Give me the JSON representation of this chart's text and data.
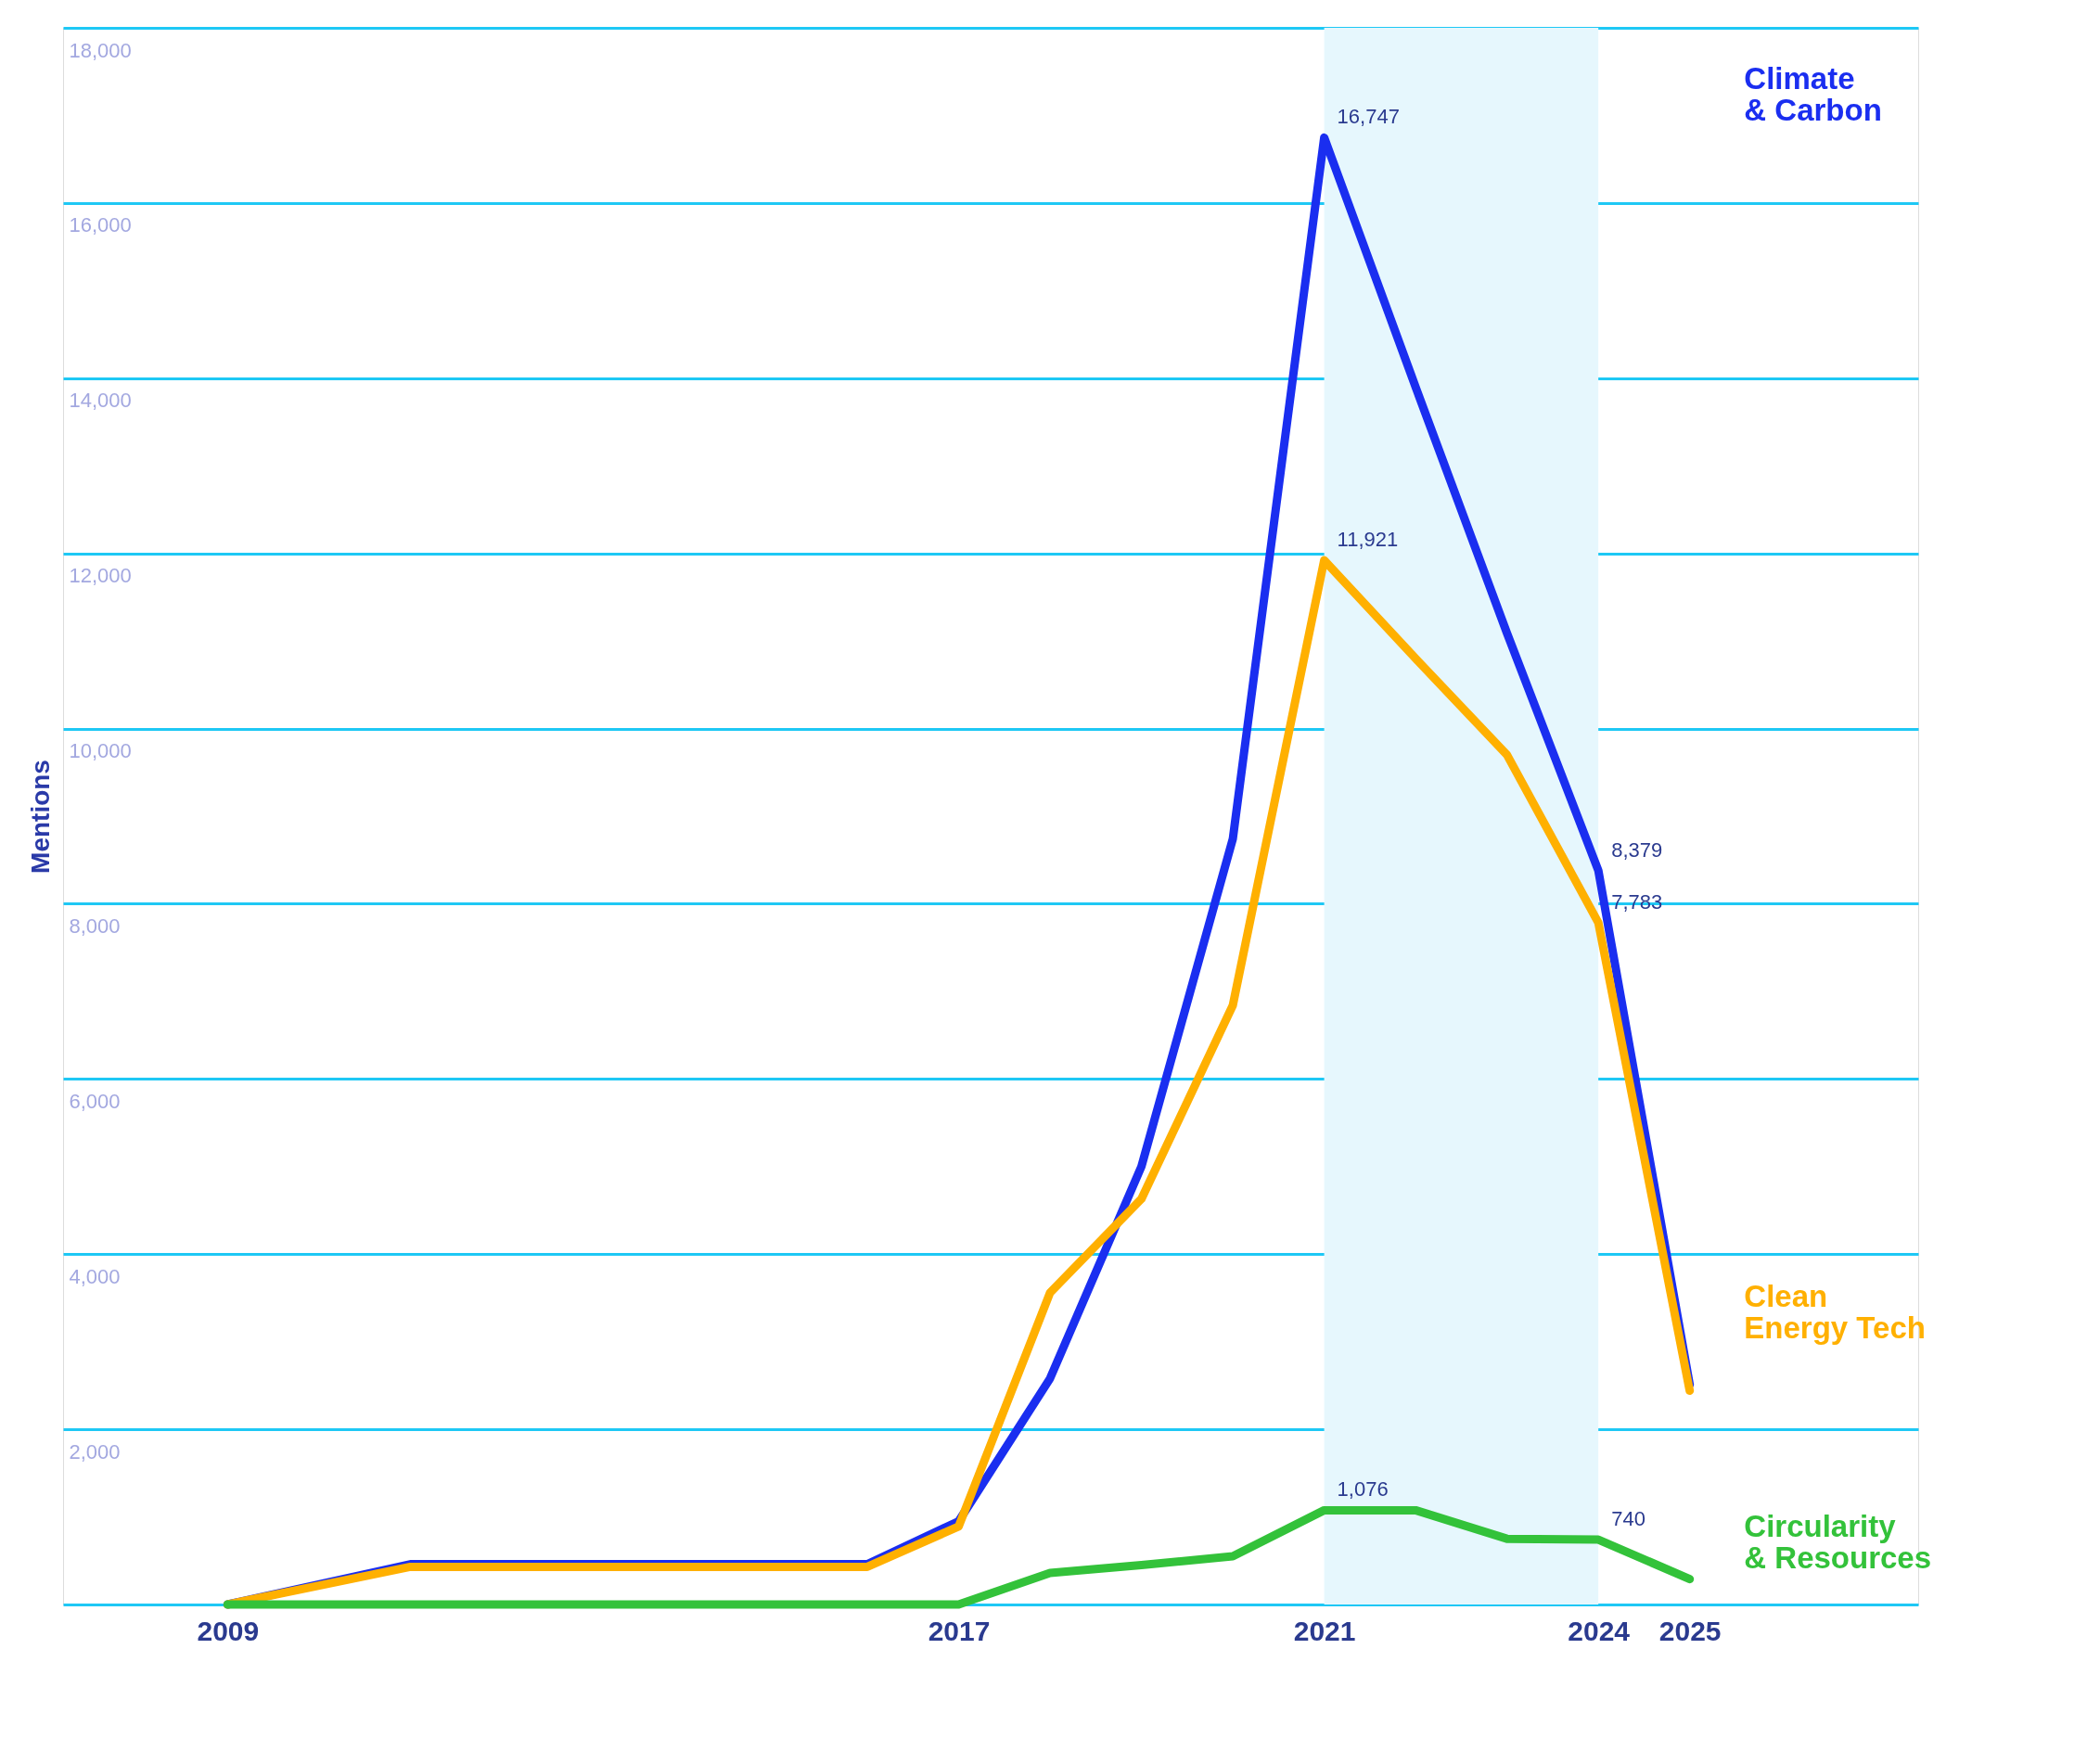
{
  "chart_data": {
    "type": "line",
    "ylabel": "Mentions",
    "x": [
      2009,
      2011,
      2012,
      2013,
      2014,
      2015,
      2016,
      2017,
      2018,
      2019,
      2020,
      2021,
      2022,
      2023,
      2024,
      2025
    ],
    "series": [
      {
        "name": "Climate & Carbon",
        "color": "#1a2ef0",
        "values": [
          0,
          460,
          460,
          460,
          460,
          460,
          460,
          950,
          2580,
          5000,
          8740,
          16747,
          13900,
          11090,
          8379,
          2510
        ],
        "value_labels": [
          null,
          null,
          null,
          null,
          null,
          null,
          null,
          null,
          null,
          null,
          null,
          "16,747",
          null,
          null,
          "8,379",
          null
        ]
      },
      {
        "name": "Clean Energy Tech",
        "color": "#ffb000",
        "values": [
          0,
          430,
          430,
          430,
          430,
          430,
          430,
          890,
          3560,
          4630,
          6840,
          11921,
          10800,
          9700,
          7783,
          2440
        ],
        "value_labels": [
          null,
          null,
          null,
          null,
          null,
          null,
          null,
          null,
          null,
          null,
          null,
          "11,921",
          null,
          null,
          "7,783",
          null
        ]
      },
      {
        "name": "Circularity & Resources",
        "color": "#33c23a",
        "values": [
          0,
          0,
          0,
          0,
          0,
          0,
          0,
          0,
          360,
          450,
          550,
          1076,
          1076,
          750,
          740,
          290
        ],
        "value_labels": [
          null,
          null,
          null,
          null,
          null,
          null,
          null,
          null,
          null,
          null,
          null,
          "1,076",
          null,
          null,
          "740",
          null
        ]
      }
    ],
    "xlim": [
      2007.2,
      2027.5
    ],
    "xticks": [
      2009,
      2017,
      2021,
      2024,
      2025
    ],
    "ylim": [
      0,
      18000
    ],
    "yticks": [
      {
        "value": 0,
        "label": null
      },
      {
        "value": 2000,
        "label": "2,000"
      },
      {
        "value": 4000,
        "label": "4,000"
      },
      {
        "value": 6000,
        "label": "6,000"
      },
      {
        "value": 8000,
        "label": "8,000"
      },
      {
        "value": 10000,
        "label": "10,000"
      },
      {
        "value": 12000,
        "label": "12,000"
      },
      {
        "value": 14000,
        "label": "14,000"
      },
      {
        "value": 16000,
        "label": "16,000"
      },
      {
        "value": 18000,
        "label": "18,000"
      }
    ],
    "bands": [
      {
        "axis": "x",
        "from": 2021,
        "to": 2024,
        "color": "#e6f7fd"
      }
    ],
    "grid": "y",
    "legend": false,
    "marker": "none",
    "line_style": "solid"
  }
}
